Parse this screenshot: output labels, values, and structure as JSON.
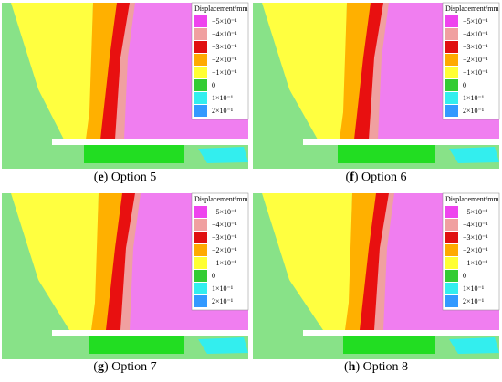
{
  "panels": [
    {
      "caption": [
        {
          "text": "(",
          "bold": false
        },
        {
          "text": "e",
          "bold": true
        },
        {
          "text": ") Option 5",
          "bold": false
        }
      ]
    },
    {
      "caption": [
        {
          "text": "(",
          "bold": false
        },
        {
          "text": "f",
          "bold": true
        },
        {
          "text": ") Option 6",
          "bold": false
        }
      ]
    },
    {
      "caption": [
        {
          "text": "(",
          "bold": false
        },
        {
          "text": "g",
          "bold": true
        },
        {
          "text": ") Option 7",
          "bold": false
        }
      ]
    },
    {
      "caption": [
        {
          "text": "(",
          "bold": false
        },
        {
          "text": "h",
          "bold": true
        },
        {
          "text": ") Option 8",
          "bold": false
        }
      ]
    }
  ],
  "legend": {
    "title": "Displacement/mm",
    "items": [
      {
        "label": "−5×10⁻¹",
        "color": "#ee44ee"
      },
      {
        "label": "−4×10⁻¹",
        "color": "#f0a0a0"
      },
      {
        "label": "−3×10⁻¹",
        "color": "#e01010"
      },
      {
        "label": "−2×10⁻¹",
        "color": "#ffaa00"
      },
      {
        "label": "−1×10⁻¹",
        "color": "#ffff33"
      },
      {
        "label": "0",
        "color": "#33cc33"
      },
      {
        "label": "1×10⁻¹",
        "color": "#33eeee"
      },
      {
        "label": "2×10⁻¹",
        "color": "#3399ff"
      }
    ]
  }
}
